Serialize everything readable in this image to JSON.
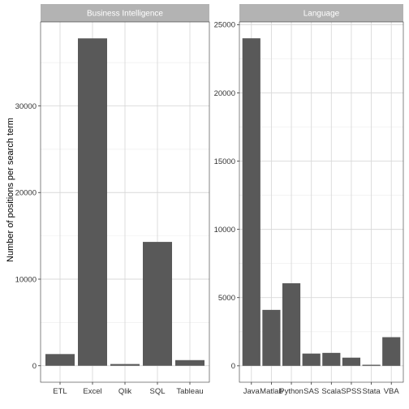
{
  "chart_data": {
    "type": "bar",
    "ylabel": "Number of positions per search term",
    "xlabel": "",
    "grid": true,
    "bar_color": "#595959",
    "strip_color": "#b3b3b3",
    "grid_color": "#d9d9d9",
    "panels": [
      {
        "title": "Business Intelligence",
        "categories": [
          "ETL",
          "Excel",
          "Qlik",
          "SQL",
          "Tableau"
        ],
        "values": [
          1350,
          37800,
          200,
          14300,
          650
        ],
        "ylim": [
          -1900,
          39700
        ],
        "yticks": [
          0,
          10000,
          20000,
          30000
        ]
      },
      {
        "title": "Language",
        "categories": [
          "Java",
          "Matlab",
          "Python",
          "SAS",
          "Scala",
          "SPSS",
          "Stata",
          "VBA"
        ],
        "values": [
          24000,
          4100,
          6050,
          900,
          950,
          600,
          80,
          2100
        ],
        "ylim": [
          -1200,
          25200
        ],
        "yticks": [
          0,
          5000,
          10000,
          15000,
          20000,
          25000
        ]
      }
    ]
  }
}
